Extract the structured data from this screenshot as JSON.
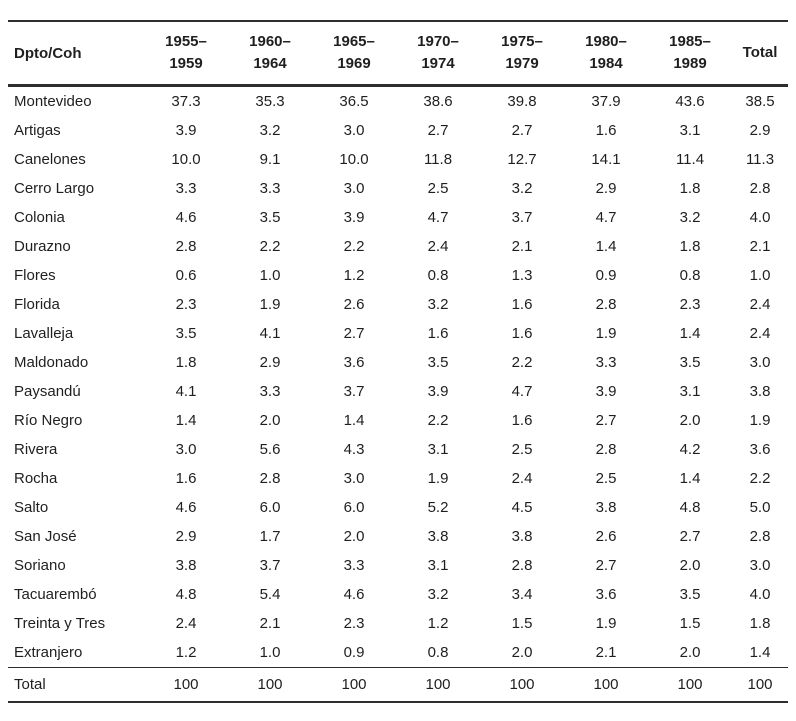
{
  "chart_data": {
    "type": "table",
    "corner_header": "Dpto/Coh",
    "column_headers": [
      "1955–\n1959",
      "1960–\n1964",
      "1965–\n1969",
      "1970–\n1974",
      "1975–\n1979",
      "1980–\n1984",
      "1985–\n1989",
      "Total"
    ],
    "rows": [
      {
        "label": "Montevideo",
        "values": [
          "37.3",
          "35.3",
          "36.5",
          "38.6",
          "39.8",
          "37.9",
          "43.6",
          "38.5"
        ]
      },
      {
        "label": "Artigas",
        "values": [
          "3.9",
          "3.2",
          "3.0",
          "2.7",
          "2.7",
          "1.6",
          "3.1",
          "2.9"
        ]
      },
      {
        "label": "Canelones",
        "values": [
          "10.0",
          "9.1",
          "10.0",
          "11.8",
          "12.7",
          "14.1",
          "11.4",
          "11.3"
        ]
      },
      {
        "label": "Cerro Largo",
        "values": [
          "3.3",
          "3.3",
          "3.0",
          "2.5",
          "3.2",
          "2.9",
          "1.8",
          "2.8"
        ]
      },
      {
        "label": "Colonia",
        "values": [
          "4.6",
          "3.5",
          "3.9",
          "4.7",
          "3.7",
          "4.7",
          "3.2",
          "4.0"
        ]
      },
      {
        "label": "Durazno",
        "values": [
          "2.8",
          "2.2",
          "2.2",
          "2.4",
          "2.1",
          "1.4",
          "1.8",
          "2.1"
        ]
      },
      {
        "label": "Flores",
        "values": [
          "0.6",
          "1.0",
          "1.2",
          "0.8",
          "1.3",
          "0.9",
          "0.8",
          "1.0"
        ]
      },
      {
        "label": "Florida",
        "values": [
          "2.3",
          "1.9",
          "2.6",
          "3.2",
          "1.6",
          "2.8",
          "2.3",
          "2.4"
        ]
      },
      {
        "label": "Lavalleja",
        "values": [
          "3.5",
          "4.1",
          "2.7",
          "1.6",
          "1.6",
          "1.9",
          "1.4",
          "2.4"
        ]
      },
      {
        "label": "Maldonado",
        "values": [
          "1.8",
          "2.9",
          "3.6",
          "3.5",
          "2.2",
          "3.3",
          "3.5",
          "3.0"
        ]
      },
      {
        "label": "Paysandú",
        "values": [
          "4.1",
          "3.3",
          "3.7",
          "3.9",
          "4.7",
          "3.9",
          "3.1",
          "3.8"
        ]
      },
      {
        "label": "Río Negro",
        "values": [
          "1.4",
          "2.0",
          "1.4",
          "2.2",
          "1.6",
          "2.7",
          "2.0",
          "1.9"
        ]
      },
      {
        "label": "Rivera",
        "values": [
          "3.0",
          "5.6",
          "4.3",
          "3.1",
          "2.5",
          "2.8",
          "4.2",
          "3.6"
        ]
      },
      {
        "label": "Rocha",
        "values": [
          "1.6",
          "2.8",
          "3.0",
          "1.9",
          "2.4",
          "2.5",
          "1.4",
          "2.2"
        ]
      },
      {
        "label": "Salto",
        "values": [
          "4.6",
          "6.0",
          "6.0",
          "5.2",
          "4.5",
          "3.8",
          "4.8",
          "5.0"
        ]
      },
      {
        "label": "San José",
        "values": [
          "2.9",
          "1.7",
          "2.0",
          "3.8",
          "3.8",
          "2.6",
          "2.7",
          "2.8"
        ]
      },
      {
        "label": "Soriano",
        "values": [
          "3.8",
          "3.7",
          "3.3",
          "3.1",
          "2.8",
          "2.7",
          "2.0",
          "3.0"
        ]
      },
      {
        "label": "Tacuarembó",
        "values": [
          "4.8",
          "5.4",
          "4.6",
          "3.2",
          "3.4",
          "3.6",
          "3.5",
          "4.0"
        ]
      },
      {
        "label": "Treinta y Tres",
        "values": [
          "2.4",
          "2.1",
          "2.3",
          "1.2",
          "1.5",
          "1.9",
          "1.5",
          "1.8"
        ]
      },
      {
        "label": "Extranjero",
        "values": [
          "1.2",
          "1.0",
          "0.9",
          "0.8",
          "2.0",
          "2.1",
          "2.0",
          "1.4"
        ]
      }
    ],
    "total_row": {
      "label": "Total",
      "values": [
        "100",
        "100",
        "100",
        "100",
        "100",
        "100",
        "100",
        "100"
      ]
    }
  }
}
